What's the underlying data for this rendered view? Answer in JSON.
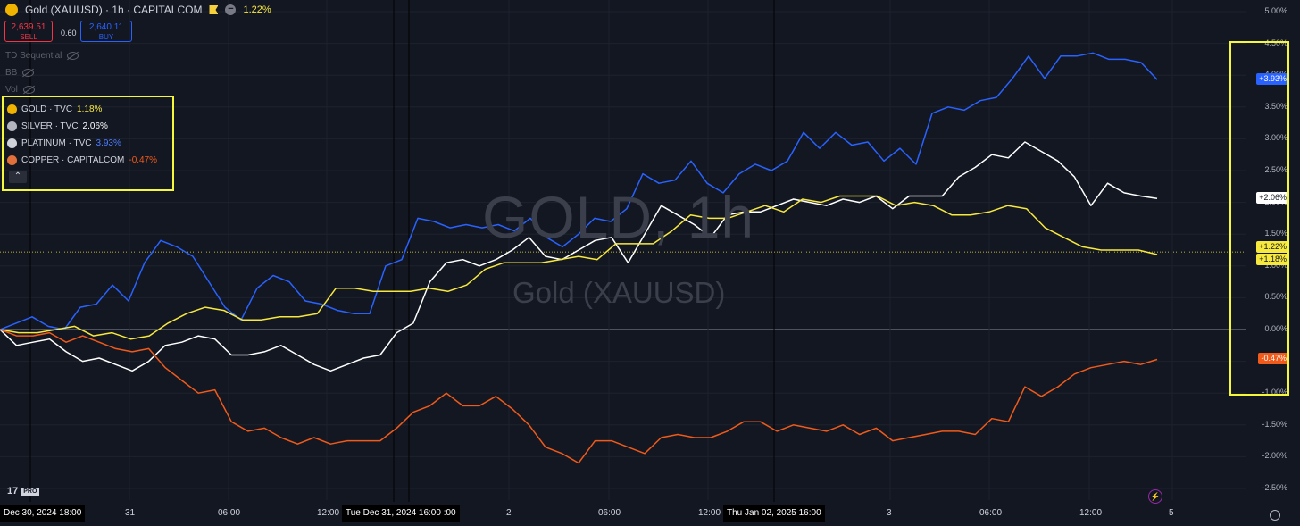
{
  "header": {
    "title": "Gold (XAUUSD) · 1h · CAPITALCOM",
    "change": "1.22%",
    "sell_price": "2,639.51",
    "sell_label": "SELL",
    "spread": "0.60",
    "buy_price": "2,640.11",
    "buy_label": "BUY"
  },
  "indicators": [
    "TD Sequential",
    "BB",
    "Vol"
  ],
  "legend": [
    {
      "name": "GOLD · TVC",
      "value": "1.18%",
      "color": "#f7e83e",
      "icon": "gold-symbol-icon"
    },
    {
      "name": "SILVER · TVC",
      "value": "2.06%",
      "color": "#ffffff",
      "icon": "silver-symbol-icon"
    },
    {
      "name": "PLATINUM · TVC",
      "value": "3.93%",
      "color": "#2962ff",
      "icon": "platinum-symbol-icon"
    },
    {
      "name": "COPPER · CAPITALCOM",
      "value": "-0.47%",
      "color": "#f05a1a",
      "icon": "copper-symbol-icon"
    }
  ],
  "watermark": {
    "main": "GOLD, 1h",
    "sub": "Gold (XAUUSD)"
  },
  "price_tags": [
    {
      "text": "+3.93%",
      "bg": "#2962ff",
      "fg": "#ffffff",
      "value": 3.93
    },
    {
      "text": "+2.06%",
      "bg": "#ffffff",
      "fg": "#131722",
      "value": 2.06
    },
    {
      "text": "+1.22%",
      "bg": "#f7e83e",
      "fg": "#131722",
      "value": 1.22
    },
    {
      "text": "+1.18%",
      "bg": "#f7e83e",
      "fg": "#131722",
      "value": 1.18
    },
    {
      "text": "-0.47%",
      "bg": "#f05a1a",
      "fg": "#ffffff",
      "value": -0.47
    }
  ],
  "x_axis_labels": [
    "Dec 30, 2024",
    "18:00",
    "31",
    "06:00",
    "12:00",
    "Tue Dec 31, 2024",
    "16:00",
    ":00",
    "2",
    "06:00",
    "12:00",
    "Thu Jan 02, 2025",
    "16:00",
    "3",
    "06:00",
    "12:00",
    "5"
  ],
  "chart_data": {
    "type": "line",
    "y_unit": "%",
    "y_range": [
      -2.6,
      5.0
    ],
    "y_ticks": [
      "5.00%",
      "4.50%",
      "4.00%",
      "3.50%",
      "3.00%",
      "2.50%",
      "2.00%",
      "1.50%",
      "1.00%",
      "0.50%",
      "0.00%",
      "-0.50%",
      "-1.00%",
      "-1.50%",
      "-2.00%",
      "-2.50%"
    ],
    "current_level": 1.22,
    "series": [
      {
        "name": "PLATINUM · TVC",
        "color": "#2962ff",
        "values": [
          0.0,
          0.1,
          0.2,
          0.05,
          0.0,
          0.35,
          0.4,
          0.7,
          0.45,
          1.05,
          1.4,
          1.3,
          1.15,
          0.75,
          0.35,
          0.15,
          0.65,
          0.85,
          0.75,
          0.45,
          0.4,
          0.3,
          0.25,
          0.25,
          1.0,
          1.1,
          1.75,
          1.7,
          1.6,
          1.65,
          1.6,
          1.65,
          1.55,
          1.75,
          1.45,
          1.3,
          1.5,
          1.75,
          1.7,
          1.9,
          2.45,
          2.3,
          2.35,
          2.65,
          2.3,
          2.15,
          2.45,
          2.6,
          2.5,
          2.65,
          3.1,
          2.85,
          3.1,
          2.9,
          2.95,
          2.65,
          2.85,
          2.6,
          3.4,
          3.5,
          3.45,
          3.6,
          3.65,
          3.95,
          4.3,
          3.95,
          4.3,
          4.3,
          4.35,
          4.25,
          4.25,
          4.2,
          3.93
        ]
      },
      {
        "name": "SILVER · TVC",
        "color": "#ffffff",
        "values": [
          0.0,
          -0.25,
          -0.2,
          -0.15,
          -0.35,
          -0.5,
          -0.45,
          -0.55,
          -0.65,
          -0.5,
          -0.25,
          -0.2,
          -0.1,
          -0.15,
          -0.4,
          -0.4,
          -0.35,
          -0.25,
          -0.4,
          -0.55,
          -0.65,
          -0.55,
          -0.45,
          -0.4,
          -0.05,
          0.1,
          0.75,
          1.05,
          1.1,
          1.0,
          1.1,
          1.25,
          1.45,
          1.15,
          1.1,
          1.25,
          1.4,
          1.45,
          1.05,
          1.5,
          1.95,
          1.8,
          1.65,
          1.45,
          1.8,
          1.85,
          1.85,
          1.95,
          2.05,
          2.0,
          1.95,
          2.05,
          2.0,
          2.1,
          1.9,
          2.1,
          2.1,
          2.1,
          2.4,
          2.55,
          2.75,
          2.7,
          2.95,
          2.8,
          2.65,
          2.4,
          1.95,
          2.3,
          2.15,
          2.1,
          2.06
        ]
      },
      {
        "name": "GOLD · TVC",
        "color": "#f7e83e",
        "values": [
          0.0,
          -0.05,
          -0.05,
          0.0,
          0.05,
          -0.1,
          -0.05,
          -0.15,
          -0.1,
          0.1,
          0.25,
          0.35,
          0.3,
          0.15,
          0.15,
          0.2,
          0.2,
          0.25,
          0.65,
          0.65,
          0.6,
          0.6,
          0.6,
          0.65,
          0.6,
          0.7,
          0.95,
          1.05,
          1.05,
          1.05,
          1.1,
          1.15,
          1.1,
          1.35,
          1.35,
          1.35,
          1.55,
          1.8,
          1.75,
          1.75,
          1.85,
          1.95,
          1.85,
          2.05,
          2.0,
          2.1,
          2.1,
          2.1,
          1.95,
          2.0,
          1.95,
          1.8,
          1.8,
          1.85,
          1.95,
          1.9,
          1.6,
          1.45,
          1.3,
          1.25,
          1.25,
          1.25,
          1.18
        ]
      },
      {
        "name": "COPPER · CAPITALCOM",
        "color": "#f05a1a",
        "values": [
          0.0,
          -0.1,
          -0.1,
          -0.05,
          -0.2,
          -0.1,
          -0.2,
          -0.3,
          -0.35,
          -0.3,
          -0.6,
          -0.8,
          -1.0,
          -0.95,
          -1.45,
          -1.6,
          -1.55,
          -1.7,
          -1.8,
          -1.7,
          -1.8,
          -1.75,
          -1.75,
          -1.75,
          -1.55,
          -1.3,
          -1.2,
          -1.0,
          -1.2,
          -1.2,
          -1.05,
          -1.25,
          -1.5,
          -1.85,
          -1.95,
          -2.1,
          -1.75,
          -1.75,
          -1.85,
          -1.95,
          -1.7,
          -1.65,
          -1.7,
          -1.7,
          -1.6,
          -1.45,
          -1.45,
          -1.6,
          -1.5,
          -1.55,
          -1.6,
          -1.5,
          -1.65,
          -1.55,
          -1.75,
          -1.7,
          -1.65,
          -1.6,
          -1.6,
          -1.65,
          -1.4,
          -1.45,
          -0.9,
          -1.05,
          -0.9,
          -0.7,
          -0.6,
          -0.55,
          -0.5,
          -0.55,
          -0.47
        ]
      }
    ]
  }
}
